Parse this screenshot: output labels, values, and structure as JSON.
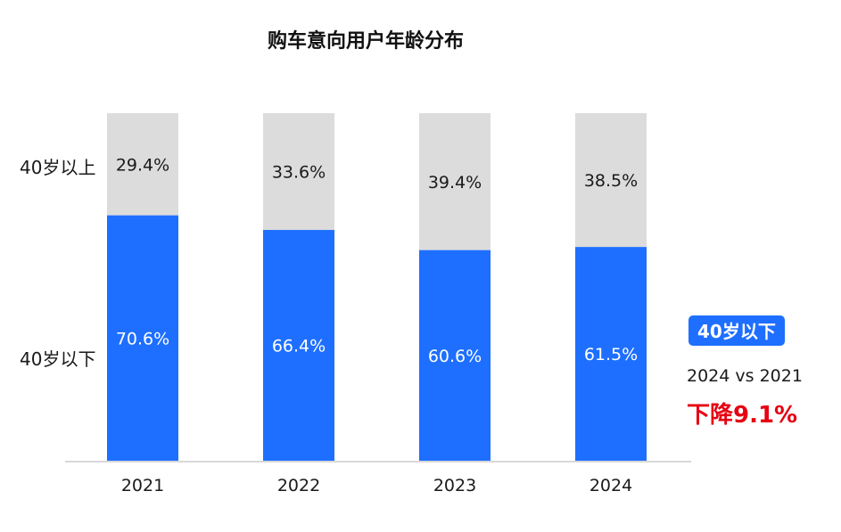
{
  "chart_data": {
    "type": "bar",
    "stacked": true,
    "title": "购车意向用户年龄分布",
    "categories": [
      "2021",
      "2022",
      "2023",
      "2024"
    ],
    "series": [
      {
        "name": "40岁以下",
        "values": [
          70.6,
          66.4,
          60.6,
          61.5
        ],
        "labels": [
          "70.6%",
          "66.4%",
          "60.6%",
          "61.5%"
        ]
      },
      {
        "name": "40岁以上",
        "values": [
          29.4,
          33.6,
          39.4,
          38.5
        ],
        "labels": [
          "29.4%",
          "33.6%",
          "39.4%",
          "38.5%"
        ]
      }
    ],
    "ylim": [
      0,
      100
    ],
    "xlabel": "",
    "ylabel": ""
  },
  "colors": {
    "under40": "#1e6fff",
    "over40": "#dcdcdc",
    "axis": "#cccccc",
    "highlight": "#e60012"
  },
  "category_labels": {
    "over40": "40岁以上",
    "under40": "40岁以下"
  },
  "annotation": {
    "badge": "40岁以下",
    "comparison": "2024 vs 2021",
    "change": "下降9.1%"
  }
}
